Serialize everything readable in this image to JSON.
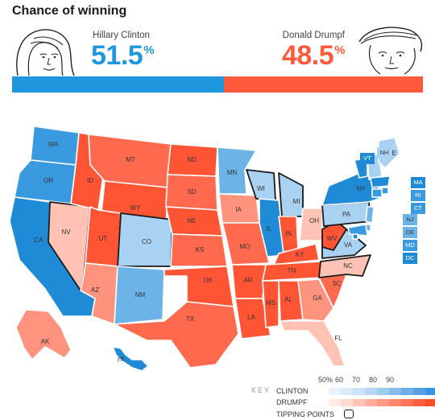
{
  "title": "Chance of winning",
  "candidates": {
    "dem": {
      "name": "Hillary Clinton",
      "pct": "51.5",
      "unit": "%",
      "share": 51.5,
      "color": "#1f97de"
    },
    "rep": {
      "name": "Donald Drumpf",
      "pct": "48.5",
      "unit": "%",
      "share": 48.5,
      "color": "#ff5a3c"
    }
  },
  "key": {
    "label": "KEY",
    "ticks": [
      "50%",
      "60",
      "70",
      "80",
      "90"
    ],
    "clinton_label": "CLINTON",
    "drumpf_label": "DRUMPF",
    "tipping_label": "TIPPING POINTS",
    "clinton_scale": [
      "#ffffff",
      "#eaf4fc",
      "#dcecf9",
      "#c9e2f6",
      "#b5d7f3",
      "#9fcbef",
      "#86bdec",
      "#6daee8",
      "#54a1e5",
      "#3b94e2"
    ],
    "drumpf_scale": [
      "#ffffff",
      "#ffeae5",
      "#ffd8ce",
      "#ffc4b6",
      "#ffae9c",
      "#ff9a84",
      "#ff866d",
      "#ff7255",
      "#ff5e3e",
      "#ff4a28"
    ]
  },
  "states": [
    {
      "abbr": "WA",
      "party": "dem",
      "level": 3
    },
    {
      "abbr": "OR",
      "party": "dem",
      "level": 3
    },
    {
      "abbr": "CA",
      "party": "dem",
      "level": 4
    },
    {
      "abbr": "NV",
      "party": "rep",
      "level": 1,
      "tipping": true
    },
    {
      "abbr": "ID",
      "party": "rep",
      "level": 4
    },
    {
      "abbr": "MT",
      "party": "rep",
      "level": 3
    },
    {
      "abbr": "WY",
      "party": "rep",
      "level": 4
    },
    {
      "abbr": "UT",
      "party": "rep",
      "level": 4
    },
    {
      "abbr": "AZ",
      "party": "rep",
      "level": 2
    },
    {
      "abbr": "CO",
      "party": "dem",
      "level": 1,
      "tipping": true
    },
    {
      "abbr": "NM",
      "party": "dem",
      "level": 2
    },
    {
      "abbr": "ND",
      "party": "rep",
      "level": 4
    },
    {
      "abbr": "SD",
      "party": "rep",
      "level": 3
    },
    {
      "abbr": "NE",
      "party": "rep",
      "level": 4
    },
    {
      "abbr": "KS",
      "party": "rep",
      "level": 3
    },
    {
      "abbr": "OK",
      "party": "rep",
      "level": 4
    },
    {
      "abbr": "TX",
      "party": "rep",
      "level": 3
    },
    {
      "abbr": "MN",
      "party": "dem",
      "level": 2
    },
    {
      "abbr": "IA",
      "party": "rep",
      "level": 2
    },
    {
      "abbr": "MO",
      "party": "rep",
      "level": 3
    },
    {
      "abbr": "AR",
      "party": "rep",
      "level": 4
    },
    {
      "abbr": "LA",
      "party": "rep",
      "level": 4
    },
    {
      "abbr": "WI",
      "party": "dem",
      "level": 1,
      "tipping": true
    },
    {
      "abbr": "IL",
      "party": "dem",
      "level": 4
    },
    {
      "abbr": "MI",
      "party": "dem",
      "level": 1,
      "tipping": true
    },
    {
      "abbr": "IN",
      "party": "rep",
      "level": 4
    },
    {
      "abbr": "OH",
      "party": "rep",
      "level": 1
    },
    {
      "abbr": "KY",
      "party": "rep",
      "level": 4
    },
    {
      "abbr": "TN",
      "party": "rep",
      "level": 4
    },
    {
      "abbr": "MS",
      "party": "rep",
      "level": 4
    },
    {
      "abbr": "AL",
      "party": "rep",
      "level": 4
    },
    {
      "abbr": "GA",
      "party": "rep",
      "level": 2
    },
    {
      "abbr": "FL",
      "party": "rep",
      "level": 1
    },
    {
      "abbr": "SC",
      "party": "rep",
      "level": 3
    },
    {
      "abbr": "NC",
      "party": "rep",
      "level": 1,
      "tipping": true
    },
    {
      "abbr": "VA",
      "party": "dem",
      "level": 1,
      "tipping": true
    },
    {
      "abbr": "WV",
      "party": "rep",
      "level": 4,
      "tipping": true
    },
    {
      "abbr": "PA",
      "party": "dem",
      "level": 1,
      "tipping": true
    },
    {
      "abbr": "NY",
      "party": "dem",
      "level": 4
    },
    {
      "abbr": "VT",
      "party": "dem",
      "level": 4
    },
    {
      "abbr": "NH",
      "party": "dem",
      "level": 1
    },
    {
      "abbr": "ME",
      "party": "dem",
      "level": 1
    },
    {
      "abbr": "MA",
      "party": "dem",
      "level": 4
    },
    {
      "abbr": "RI",
      "party": "dem",
      "level": 3
    },
    {
      "abbr": "CT",
      "party": "dem",
      "level": 3
    },
    {
      "abbr": "NJ",
      "party": "dem",
      "level": 2
    },
    {
      "abbr": "DE",
      "party": "dem",
      "level": 2
    },
    {
      "abbr": "MD",
      "party": "dem",
      "level": 3
    },
    {
      "abbr": "DC",
      "party": "dem",
      "level": 4
    },
    {
      "abbr": "AK",
      "party": "rep",
      "level": 2
    },
    {
      "abbr": "HI",
      "party": "dem",
      "level": 4
    }
  ]
}
